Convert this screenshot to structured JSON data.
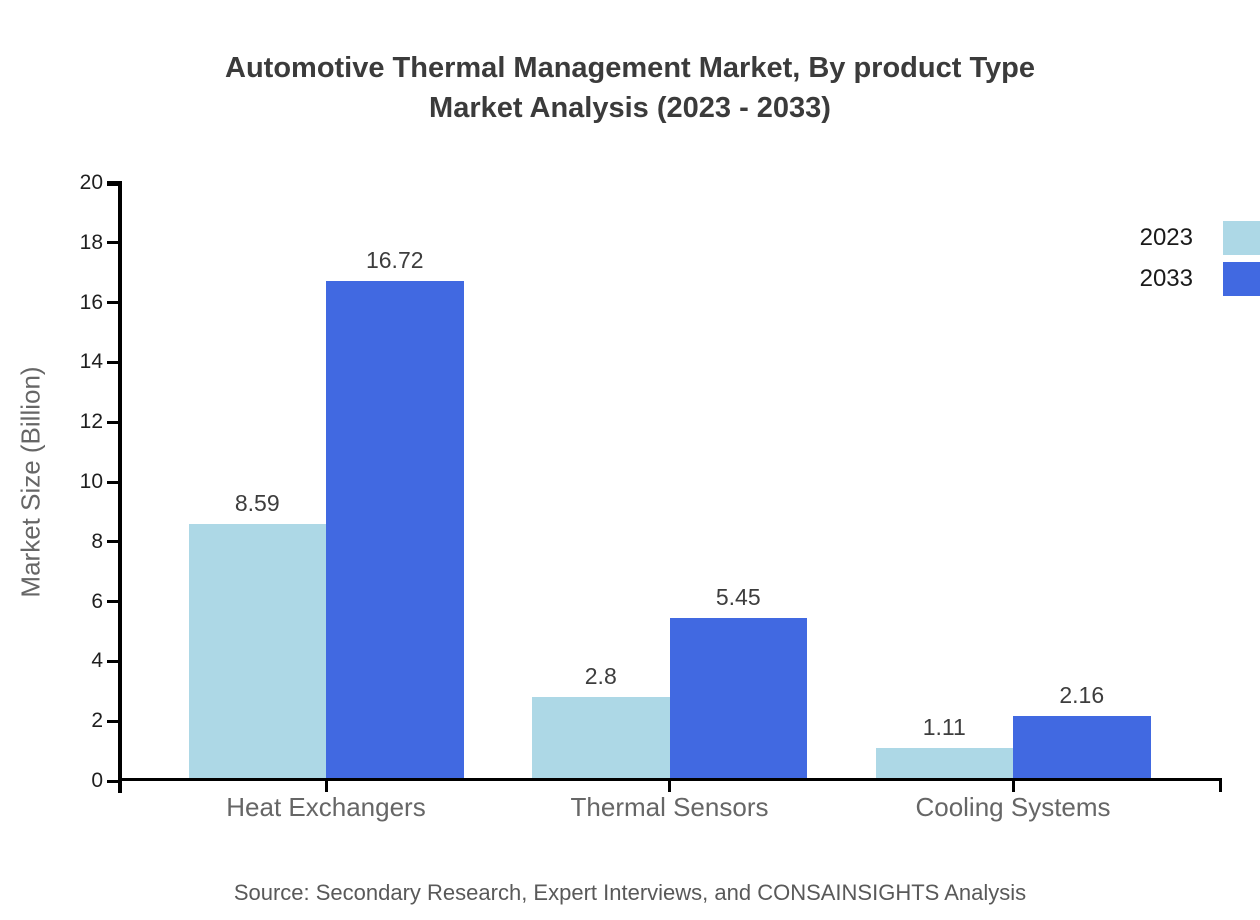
{
  "title": {
    "line1": "Automotive Thermal Management Market, By product Type",
    "line2": "Market Analysis (2023 - 2033)"
  },
  "chart_data": {
    "type": "bar",
    "title": "Automotive Thermal Management Market, By product Type Market Analysis (2023 - 2033)",
    "categories": [
      "Heat Exchangers",
      "Thermal Sensors",
      "Cooling Systems"
    ],
    "series": [
      {
        "name": "2023",
        "color": "#ADD8E6",
        "values": [
          8.59,
          2.8,
          1.11
        ]
      },
      {
        "name": "2033",
        "color": "#4169E1",
        "values": [
          16.72,
          5.45,
          2.16
        ]
      }
    ],
    "xlabel": "",
    "ylabel": "Market Size (Billion)",
    "ylim": [
      0,
      20
    ],
    "ytick_step": 2,
    "yticks": [
      0,
      2,
      4,
      6,
      8,
      10,
      12,
      14,
      16,
      18,
      20
    ],
    "grid": false,
    "legend_position": "top-right",
    "axis_color": "#000000",
    "value_label_color": "#3d3d3d"
  },
  "source": "Source: Secondary Research, Expert Interviews, and CONSAINSIGHTS Analysis"
}
